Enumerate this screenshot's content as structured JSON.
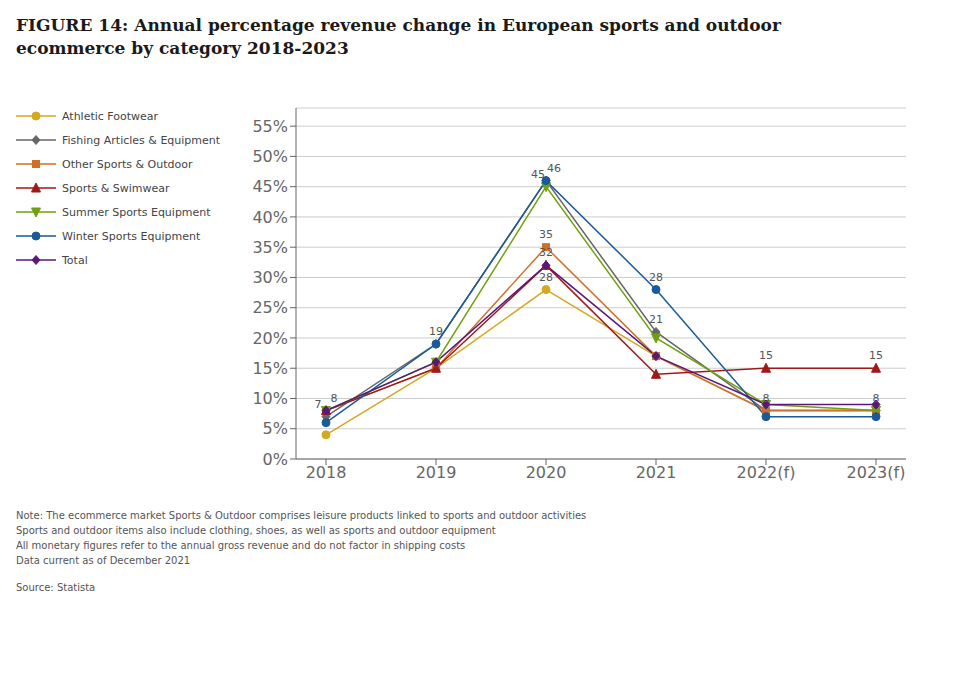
{
  "chart_data": {
    "type": "line",
    "title": "FIGURE 14: Annual percentage revenue change in European sports and outdoor\necommerce by category 2018-2023",
    "categories": [
      "2018",
      "2019",
      "2020",
      "2021",
      "2022(f)",
      "2023(f)"
    ],
    "series": [
      {
        "name": "Athletic Footwear",
        "color": "#d4a820",
        "marker": "circle",
        "values": [
          4,
          15,
          28,
          17,
          8,
          8
        ]
      },
      {
        "name": "Fishing Articles & Equipment",
        "color": "#666666",
        "marker": "diamond",
        "values": [
          7,
          19,
          46,
          21,
          8,
          8
        ]
      },
      {
        "name": "Other Sports & Outdoor",
        "color": "#d07028",
        "marker": "square",
        "values": [
          8,
          15,
          35,
          17,
          8,
          8
        ]
      },
      {
        "name": "Sports & Swimwear",
        "color": "#a01818",
        "marker": "triangle",
        "values": [
          8,
          15,
          32,
          14,
          15,
          15
        ]
      },
      {
        "name": "Summer Sports Equipment",
        "color": "#70a010",
        "marker": "triangle-down",
        "values": [
          8,
          16,
          45,
          20,
          9,
          8
        ]
      },
      {
        "name": "Winter Sports Equipment",
        "color": "#1a5a9a",
        "marker": "circle",
        "values": [
          6,
          19,
          46,
          28,
          7,
          7
        ]
      },
      {
        "name": "Total",
        "color": "#5a1878",
        "marker": "diamond",
        "values": [
          8,
          16,
          32,
          17,
          9,
          9
        ]
      }
    ],
    "ylim": [
      0,
      58
    ],
    "yticks": [
      {
        "value": 0,
        "label": "0%"
      },
      {
        "value": 5,
        "label": "5%"
      },
      {
        "value": 10,
        "label": "10%"
      },
      {
        "value": 15,
        "label": "15%"
      },
      {
        "value": 20,
        "label": "20%"
      },
      {
        "value": 25,
        "label": "25%"
      },
      {
        "value": 30,
        "label": "30%"
      },
      {
        "value": 35,
        "label": "35%"
      },
      {
        "value": 40,
        "label": "40%"
      },
      {
        "value": 45,
        "label": "45%"
      },
      {
        "value": 50,
        "label": "50%"
      },
      {
        "value": 55,
        "label": "55%"
      }
    ],
    "grid": true,
    "legend": "left",
    "annotations": [
      {
        "series": "Athletic Footwear",
        "x": "2020",
        "y": 28,
        "text": "28"
      },
      {
        "series": "Fishing Articles & Equipment",
        "x": "2018",
        "y": 7,
        "text": "7"
      },
      {
        "series": "Fishing Articles & Equipment",
        "x": "2019",
        "y": 19,
        "text": "19"
      },
      {
        "series": "Fishing Articles & Equipment",
        "x": "2020",
        "y": 46,
        "text": "46"
      },
      {
        "series": "Fishing Articles & Equipment",
        "x": "2021",
        "y": 21,
        "text": "21"
      },
      {
        "series": "Fishing Articles & Equipment",
        "x": "2022(f)",
        "y": 8,
        "text": "8"
      },
      {
        "series": "Fishing Articles & Equipment",
        "x": "2023(f)",
        "y": 8,
        "text": "8"
      },
      {
        "series": "Other Sports & Outdoor",
        "x": "2020",
        "y": 35,
        "text": "35"
      },
      {
        "series": "Sports & Swimwear",
        "x": "2020",
        "y": 32,
        "text": "32"
      },
      {
        "series": "Sports & Swimwear",
        "x": "2022(f)",
        "y": 15,
        "text": "15"
      },
      {
        "series": "Sports & Swimwear",
        "x": "2023(f)",
        "y": 15,
        "text": "15"
      },
      {
        "series": "Summer Sports Equipment",
        "x": "2020",
        "y": 45,
        "text": "45"
      },
      {
        "series": "Winter Sports Equipment",
        "x": "2021",
        "y": 28,
        "text": "28"
      },
      {
        "series": "Total",
        "x": "2018",
        "y": 8,
        "text": "8"
      }
    ],
    "notes": [
      "Note: The ecommerce market Sports & Outdoor comprises leisure products linked to sports and outdoor activities",
      "Sports and outdoor items also include clothing, shoes, as well as sports and outdoor equipment",
      "All monetary figures refer to the annual gross revenue and do not factor in shipping costs",
      "Data current as of December 2021"
    ],
    "source": "Source: Statista"
  }
}
